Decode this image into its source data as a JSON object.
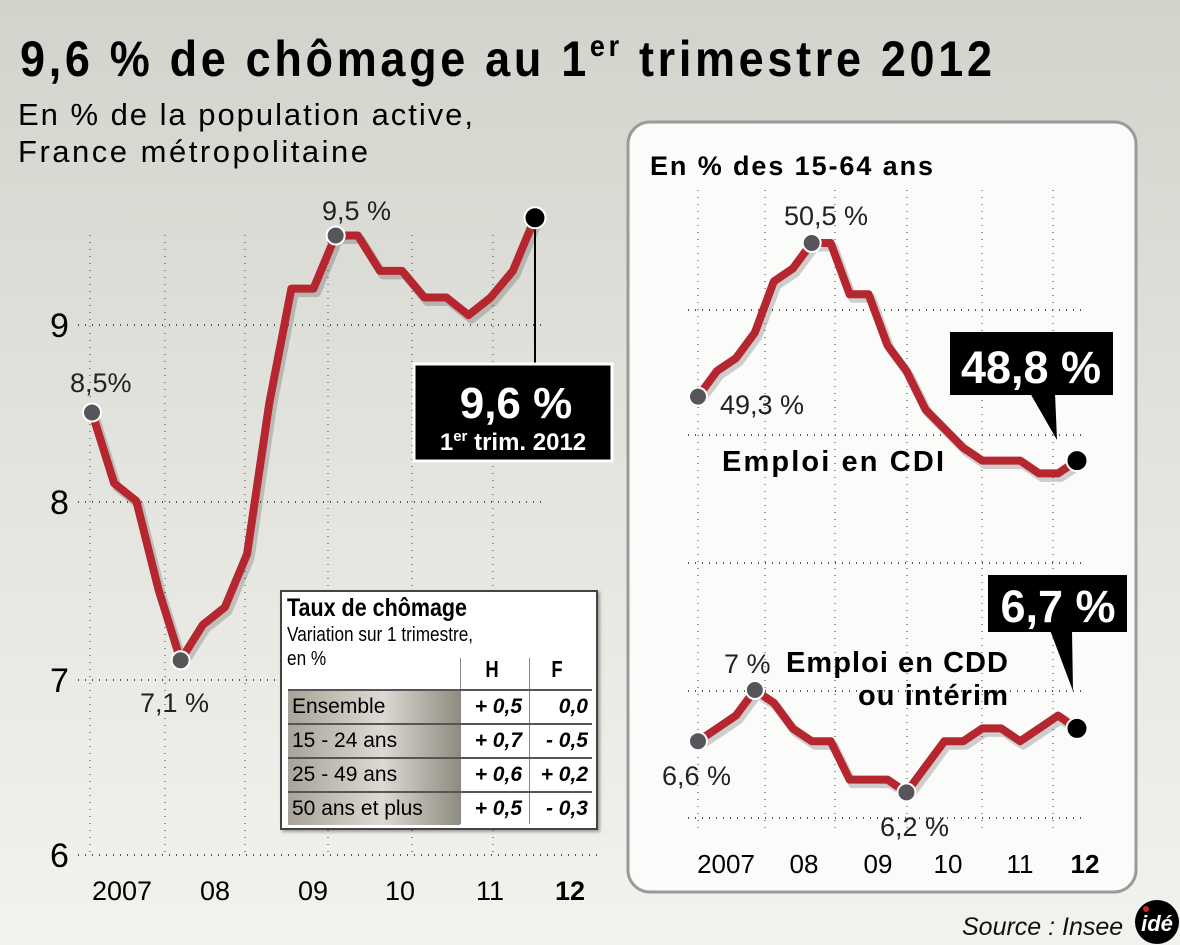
{
  "title": {
    "main": "9,6 % de chômage au 1",
    "sup": "er",
    "rest": " trimestre 2012"
  },
  "subtitle": [
    "En % de la population active,",
    "France métropolitaine"
  ],
  "colors": {
    "line": "#b5262f",
    "marker": "#55555a",
    "last_marker": "#000000",
    "callout_bg": "#000000"
  },
  "chart_data": [
    {
      "type": "line",
      "title": "",
      "x": [
        "2007T1",
        "2007T2",
        "2007T3",
        "2007T4",
        "2008T1",
        "2008T2",
        "2008T3",
        "2008T4",
        "2009T1",
        "2009T2",
        "2009T3",
        "2009T4",
        "2010T1",
        "2010T2",
        "2010T3",
        "2010T4",
        "2011T1",
        "2011T2",
        "2011T3",
        "2011T4",
        "2012T1"
      ],
      "values": [
        8.5,
        8.1,
        8.0,
        7.5,
        7.1,
        7.3,
        7.4,
        7.7,
        8.55,
        9.2,
        9.2,
        9.5,
        9.5,
        9.3,
        9.3,
        9.15,
        9.15,
        9.05,
        9.15,
        9.3,
        9.6
      ],
      "ylim": [
        6,
        9.9
      ],
      "yticks": [
        "6",
        "7",
        "8",
        "9"
      ],
      "xtick_labels": [
        "2007",
        "08",
        "09",
        "10",
        "11",
        "12"
      ],
      "grid": true,
      "annotations": [
        {
          "label": "8,5%",
          "index": 0
        },
        {
          "label": "7,1 %",
          "index": 4
        },
        {
          "label": "9,5 %",
          "index": 11
        }
      ],
      "callout": {
        "value": "9,6 %",
        "sup_prefix": "1",
        "sup": "er",
        "suffix": " trim. 2012"
      }
    },
    {
      "type": "line",
      "panel_title": "En % des 15-64 ans",
      "series": [
        {
          "name": "Emploi en CDI",
          "values": [
            49.3,
            49.5,
            49.6,
            49.8,
            50.2,
            50.3,
            50.5,
            50.5,
            50.1,
            50.1,
            49.7,
            49.5,
            49.2,
            49.05,
            48.9,
            48.8,
            48.8,
            48.8,
            48.7,
            48.7,
            48.8
          ],
          "annotations": [
            {
              "label": "49,3 %",
              "index": 0
            },
            {
              "label": "50,5 %",
              "index": 6
            }
          ],
          "callout": "48,8 %"
        },
        {
          "name": "Emploi en CDD",
          "name_line2": "ou intérim",
          "values": [
            6.6,
            6.7,
            6.8,
            7.0,
            6.9,
            6.7,
            6.6,
            6.6,
            6.3,
            6.3,
            6.3,
            6.2,
            6.4,
            6.6,
            6.6,
            6.7,
            6.7,
            6.6,
            6.7,
            6.8,
            6.7
          ],
          "annotations": [
            {
              "label": "6,6 %",
              "index": 0
            },
            {
              "label": "7 %",
              "index": 3
            },
            {
              "label": "6,2 %",
              "index": 11
            }
          ],
          "callout": "6,7 %"
        }
      ],
      "xtick_labels": [
        "2007",
        "08",
        "09",
        "10",
        "11",
        "12"
      ],
      "grid": true
    }
  ],
  "table": {
    "title": "Taux de chômage",
    "subtitle": "Variation sur 1 trimestre,",
    "unit": "en %",
    "columns": [
      "H",
      "F"
    ],
    "rows": [
      {
        "label": "Ensemble",
        "h": "+ 0,5",
        "f": "0,0"
      },
      {
        "label": "15 - 24 ans",
        "h": "+ 0,7",
        "f": "- 0,5"
      },
      {
        "label": "25 - 49 ans",
        "h": "+ 0,6",
        "f": "+ 0,2"
      },
      {
        "label": "50 ans et plus",
        "h": "+ 0,5",
        "f": "- 0,3"
      }
    ]
  },
  "source": "Source : Insee",
  "logo": "idé"
}
